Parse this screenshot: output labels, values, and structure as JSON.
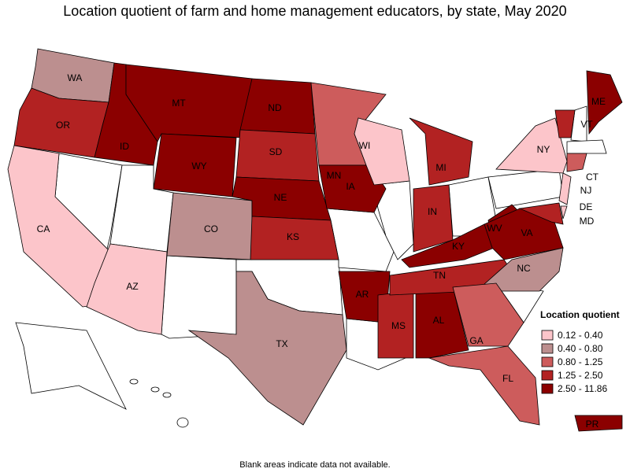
{
  "title": "Location quotient of farm and home management educators, by state, May 2020",
  "legend": {
    "title": "Location quotient",
    "classes": [
      {
        "label": "0.12 - 0.40",
        "color": "#fcc5ca"
      },
      {
        "label": "0.40 - 0.80",
        "color": "#bc8f8f"
      },
      {
        "label": "0.80 - 1.25",
        "color": "#cd5c5c"
      },
      {
        "label": "1.25 - 2.50",
        "color": "#b22222"
      },
      {
        "label": "2.50 - 11.86",
        "color": "#8b0000"
      }
    ]
  },
  "states": [
    {
      "label": "WA",
      "class": 1
    },
    {
      "label": "OR",
      "class": 3
    },
    {
      "label": "CA",
      "class": 0
    },
    {
      "label": "AZ",
      "class": 0
    },
    {
      "label": "ID",
      "class": 4
    },
    {
      "label": "MT",
      "class": 4
    },
    {
      "label": "WY",
      "class": 4
    },
    {
      "label": "CO",
      "class": 1
    },
    {
      "label": "ND",
      "class": 4
    },
    {
      "label": "SD",
      "class": 3
    },
    {
      "label": "NE",
      "class": 4
    },
    {
      "label": "KS",
      "class": 3
    },
    {
      "label": "TX",
      "class": 1
    },
    {
      "label": "MN",
      "class": 2
    },
    {
      "label": "IA",
      "class": 4
    },
    {
      "label": "AR",
      "class": 4
    },
    {
      "label": "MS",
      "class": 3
    },
    {
      "label": "AL",
      "class": 4
    },
    {
      "label": "TN",
      "class": 3
    },
    {
      "label": "KY",
      "class": 4
    },
    {
      "label": "WV",
      "class": 4
    },
    {
      "label": "VA",
      "class": 4
    },
    {
      "label": "NC",
      "class": 1
    },
    {
      "label": "GA",
      "class": 2
    },
    {
      "label": "FL",
      "class": 2
    },
    {
      "label": "IN",
      "class": 3
    },
    {
      "label": "MI",
      "class": 3
    },
    {
      "label": "WI",
      "class": 0
    },
    {
      "label": "NY",
      "class": 0
    },
    {
      "label": "VT",
      "class": 3
    },
    {
      "label": "ME",
      "class": 4
    },
    {
      "label": "CT",
      "class": 2
    },
    {
      "label": "NJ",
      "class": 0
    },
    {
      "label": "DE",
      "class": 0
    },
    {
      "label": "MD",
      "class": 3
    },
    {
      "label": "PR",
      "class": 4
    }
  ],
  "note": "Blank areas indicate data not available."
}
